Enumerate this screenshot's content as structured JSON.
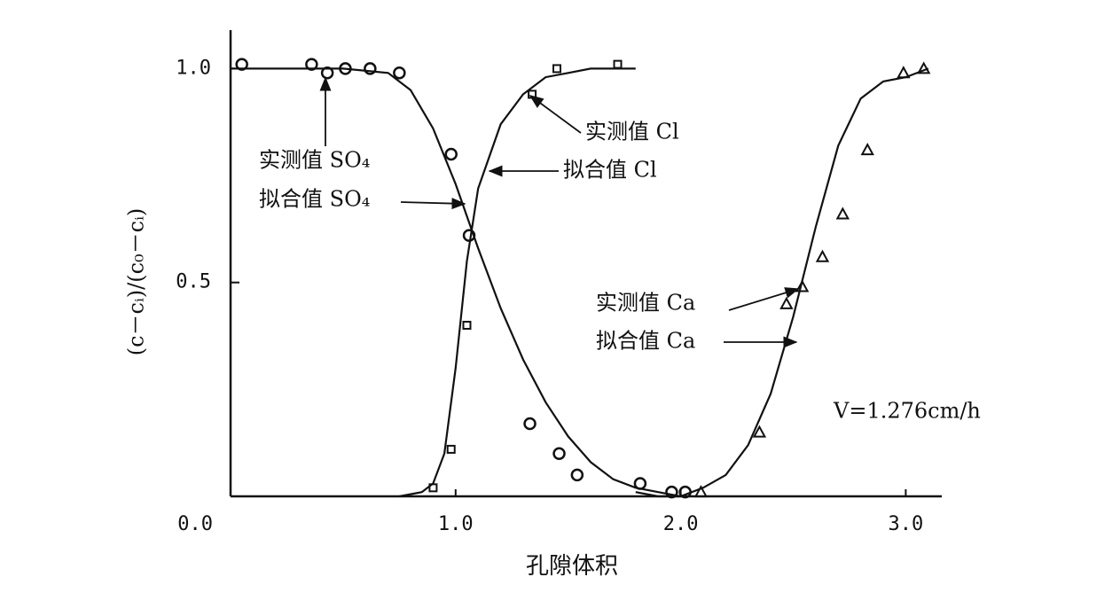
{
  "chart_data": {
    "type": "line",
    "x_label": "孔隙体积",
    "y_label": "(c－cᵢ)/(c₀－cᵢ)",
    "xlim": [
      0,
      3.16
    ],
    "ylim": [
      0,
      1.09
    ],
    "xticks": [
      {
        "value": 0,
        "label": "0.0"
      },
      {
        "value": 1,
        "label": "1.0"
      },
      {
        "value": 2,
        "label": "2.0"
      },
      {
        "value": 3,
        "label": "3.0"
      }
    ],
    "yticks": [
      {
        "value": 0.5,
        "label": "0.5"
      },
      {
        "value": 1,
        "label": "1.0"
      }
    ],
    "color": "#111111",
    "series": [
      {
        "type": "scatter",
        "marker": "circle",
        "x": [
          0.05,
          0.36,
          0.43,
          0.51,
          0.62,
          0.75,
          0.98,
          1.06,
          1.33,
          1.46,
          1.54,
          1.82,
          1.96,
          2.02
        ],
        "values": [
          1.01,
          1.01,
          0.99,
          1.0,
          1.0,
          0.99,
          0.8,
          0.61,
          0.17,
          0.1,
          0.05,
          0.03,
          0.01,
          0.01
        ]
      },
      {
        "type": "line",
        "x": [
          0,
          0.5,
          0.7,
          0.8,
          0.9,
          1.0,
          1.1,
          1.2,
          1.3,
          1.4,
          1.5,
          1.6,
          1.7,
          1.8,
          1.9,
          2.0
        ],
        "values": [
          1.0,
          1.0,
          0.99,
          0.95,
          0.86,
          0.73,
          0.58,
          0.44,
          0.32,
          0.22,
          0.14,
          0.08,
          0.04,
          0.02,
          0.01,
          0.0
        ]
      },
      {
        "type": "scatter",
        "marker": "square",
        "x": [
          0.9,
          0.98,
          1.05,
          1.34,
          1.45,
          1.72
        ],
        "values": [
          0.02,
          0.11,
          0.4,
          0.94,
          1.0,
          1.01
        ]
      },
      {
        "type": "line",
        "x": [
          0.75,
          0.85,
          0.9,
          0.95,
          1.0,
          1.05,
          1.1,
          1.2,
          1.3,
          1.4,
          1.5,
          1.6,
          1.8
        ],
        "values": [
          0,
          0.01,
          0.03,
          0.1,
          0.3,
          0.55,
          0.72,
          0.87,
          0.94,
          0.98,
          0.99,
          1.0,
          1.0
        ]
      },
      {
        "type": "scatter",
        "marker": "triangle",
        "x": [
          2.09,
          2.35,
          2.47,
          2.54,
          2.63,
          2.72,
          2.83,
          2.99,
          3.08
        ],
        "values": [
          0.01,
          0.15,
          0.45,
          0.49,
          0.56,
          0.66,
          0.81,
          0.99,
          1.0
        ]
      },
      {
        "type": "line",
        "x": [
          1.8,
          1.9,
          2.0,
          2.1,
          2.2,
          2.3,
          2.4,
          2.5,
          2.6,
          2.7,
          2.8,
          2.9,
          3.0,
          3.1
        ],
        "values": [
          0.01,
          0.0,
          0.0,
          0.02,
          0.05,
          0.12,
          0.24,
          0.42,
          0.63,
          0.82,
          0.93,
          0.97,
          0.98,
          1.0
        ]
      }
    ],
    "annotations": [
      "实测值 SO₄",
      "拟合值 SO₄",
      "实测值 Cl",
      "拟合值 Cl",
      "实测值 Ca",
      "拟合值 Ca",
      "V=1.276cm/h"
    ]
  }
}
